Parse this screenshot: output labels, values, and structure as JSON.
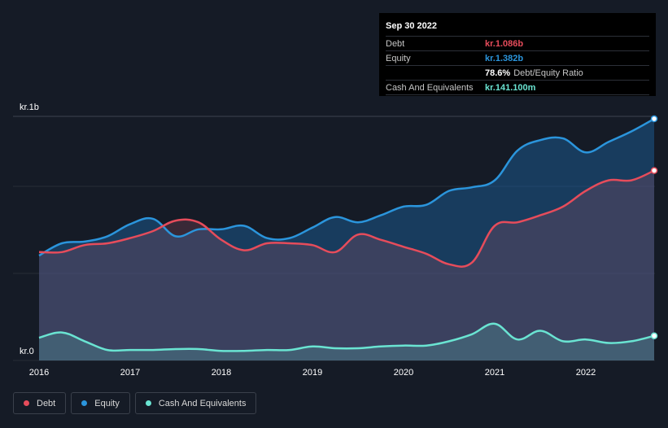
{
  "tooltip": {
    "date": "Sep 30 2022",
    "rows": [
      {
        "label": "Debt",
        "value": "kr.1.086b",
        "color": "#e64c5b"
      },
      {
        "label": "Equity",
        "value": "kr.1.382b",
        "color": "#2b95dc"
      },
      {
        "label": "",
        "value": "78.6%",
        "extra": "Debt/Equity Ratio",
        "color": "#ffffff"
      },
      {
        "label": "Cash And Equivalents",
        "value": "kr.141.100m",
        "color": "#6ae4d2"
      }
    ]
  },
  "legend": [
    {
      "label": "Debt",
      "color": "#e64c5b"
    },
    {
      "label": "Equity",
      "color": "#2b95dc"
    },
    {
      "label": "Cash And Equivalents",
      "color": "#6ae4d2"
    }
  ],
  "chart_data": {
    "type": "area",
    "title": "",
    "xlabel": "",
    "ylabel": "",
    "y_unit_label_top": "kr.1b",
    "y_unit_label_bottom": "kr.0",
    "ylim": [
      0,
      1.382
    ],
    "xlim": [
      2016.0,
      2022.75
    ],
    "x_ticks": [
      2016,
      2017,
      2018,
      2019,
      2020,
      2021,
      2022
    ],
    "x_tick_labels": [
      "2016",
      "2017",
      "2018",
      "2019",
      "2020",
      "2021",
      "2022"
    ],
    "series": [
      {
        "name": "Debt",
        "color": "#e64c5b",
        "x": [
          2016.0,
          2016.25,
          2016.5,
          2016.75,
          2017.0,
          2017.25,
          2017.5,
          2017.75,
          2018.0,
          2018.25,
          2018.5,
          2018.75,
          2019.0,
          2019.25,
          2019.5,
          2019.75,
          2020.0,
          2020.25,
          2020.5,
          2020.75,
          2021.0,
          2021.25,
          2021.5,
          2021.75,
          2022.0,
          2022.25,
          2022.5,
          2022.75
        ],
        "values": [
          0.62,
          0.62,
          0.66,
          0.67,
          0.7,
          0.74,
          0.8,
          0.79,
          0.69,
          0.63,
          0.67,
          0.67,
          0.66,
          0.62,
          0.72,
          0.69,
          0.65,
          0.61,
          0.55,
          0.56,
          0.77,
          0.79,
          0.83,
          0.88,
          0.97,
          1.03,
          1.03,
          1.086
        ]
      },
      {
        "name": "Equity",
        "color": "#2b95dc",
        "x": [
          2016.0,
          2016.25,
          2016.5,
          2016.75,
          2017.0,
          2017.25,
          2017.5,
          2017.75,
          2018.0,
          2018.25,
          2018.5,
          2018.75,
          2019.0,
          2019.25,
          2019.5,
          2019.75,
          2020.0,
          2020.25,
          2020.5,
          2020.75,
          2021.0,
          2021.25,
          2021.5,
          2021.75,
          2022.0,
          2022.25,
          2022.5,
          2022.75
        ],
        "values": [
          0.6,
          0.67,
          0.68,
          0.71,
          0.78,
          0.81,
          0.71,
          0.75,
          0.75,
          0.77,
          0.7,
          0.7,
          0.76,
          0.82,
          0.79,
          0.83,
          0.88,
          0.89,
          0.97,
          0.99,
          1.03,
          1.2,
          1.26,
          1.27,
          1.19,
          1.25,
          1.31,
          1.382
        ]
      },
      {
        "name": "Cash And Equivalents",
        "color": "#6ae4d2",
        "x": [
          2016.0,
          2016.25,
          2016.5,
          2016.75,
          2017.0,
          2017.25,
          2017.5,
          2017.75,
          2018.0,
          2018.25,
          2018.5,
          2018.75,
          2019.0,
          2019.25,
          2019.5,
          2019.75,
          2020.0,
          2020.25,
          2020.5,
          2020.75,
          2021.0,
          2021.25,
          2021.5,
          2021.75,
          2022.0,
          2022.25,
          2022.5,
          2022.75
        ],
        "values": [
          0.13,
          0.16,
          0.11,
          0.06,
          0.06,
          0.06,
          0.065,
          0.065,
          0.055,
          0.055,
          0.06,
          0.06,
          0.08,
          0.07,
          0.07,
          0.08,
          0.085,
          0.085,
          0.11,
          0.15,
          0.21,
          0.12,
          0.17,
          0.11,
          0.12,
          0.1,
          0.11,
          0.141
        ]
      }
    ]
  }
}
